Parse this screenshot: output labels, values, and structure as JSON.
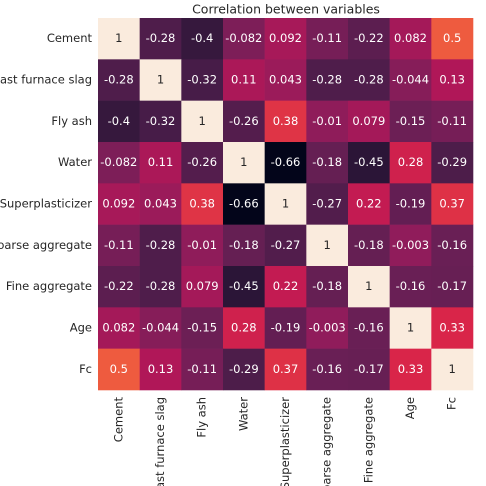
{
  "chart_data": {
    "type": "heatmap",
    "title": "Correlation between variables",
    "x_categories": [
      "Cement",
      "Blast furnace slag",
      "Fly ash",
      "Water",
      "Superplasticizer",
      "Coarse aggregate",
      "Fine aggregate",
      "Age",
      "Fc"
    ],
    "y_categories": [
      "Cement",
      "Blast furnace slag",
      "Fly ash",
      "Water",
      "Superplasticizer",
      "Coarse aggregate",
      "Fine aggregate",
      "Age",
      "Fc"
    ],
    "values": [
      [
        1,
        -0.28,
        -0.4,
        -0.082,
        0.092,
        -0.11,
        -0.22,
        0.082,
        0.5
      ],
      [
        -0.28,
        1,
        -0.32,
        0.11,
        0.043,
        -0.28,
        -0.28,
        -0.044,
        0.13
      ],
      [
        -0.4,
        -0.32,
        1,
        -0.26,
        0.38,
        -0.01,
        0.079,
        -0.15,
        -0.11
      ],
      [
        -0.082,
        0.11,
        -0.26,
        1,
        -0.66,
        -0.18,
        -0.45,
        0.28,
        -0.29
      ],
      [
        0.092,
        0.043,
        0.38,
        -0.66,
        1,
        -0.27,
        0.22,
        -0.19,
        0.37
      ],
      [
        -0.11,
        -0.28,
        -0.01,
        -0.18,
        -0.27,
        1,
        -0.18,
        -0.003,
        -0.16
      ],
      [
        -0.22,
        -0.28,
        0.079,
        -0.45,
        0.22,
        -0.18,
        1,
        -0.16,
        -0.17
      ],
      [
        0.082,
        -0.044,
        -0.15,
        0.28,
        -0.19,
        -0.003,
        -0.16,
        1,
        0.33
      ],
      [
        0.5,
        0.13,
        -0.11,
        -0.29,
        0.37,
        -0.16,
        -0.17,
        0.33,
        1
      ]
    ]
  }
}
